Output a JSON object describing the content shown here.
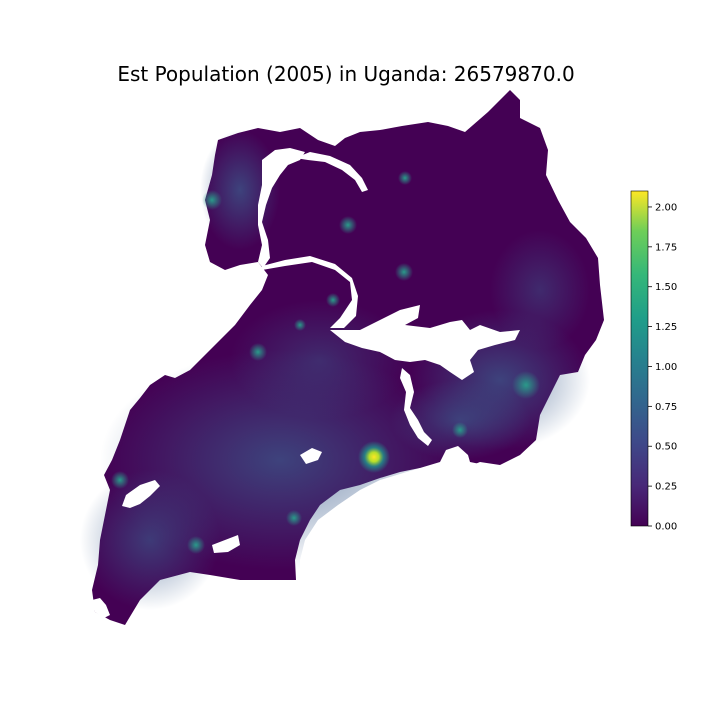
{
  "title": "Est Population (2005) in Uganda: 26579870.0",
  "colorbar": {
    "min": 0.0,
    "max": 2.1,
    "colormap": "viridis",
    "ticks": [
      {
        "value": 0.0,
        "label": "0.00"
      },
      {
        "value": 0.25,
        "label": "0.25"
      },
      {
        "value": 0.5,
        "label": "0.50"
      },
      {
        "value": 0.75,
        "label": "0.75"
      },
      {
        "value": 1.0,
        "label": "1.00"
      },
      {
        "value": 1.25,
        "label": "1.25"
      },
      {
        "value": 1.5,
        "label": "1.50"
      },
      {
        "value": 1.75,
        "label": "1.75"
      },
      {
        "value": 2.0,
        "label": "2.00"
      }
    ]
  },
  "colors": {
    "background": "#440154",
    "low": "#46337e",
    "mid": "#365c8d",
    "high": "#21918c",
    "peak": "#fde725",
    "water": "#ffffff"
  }
}
